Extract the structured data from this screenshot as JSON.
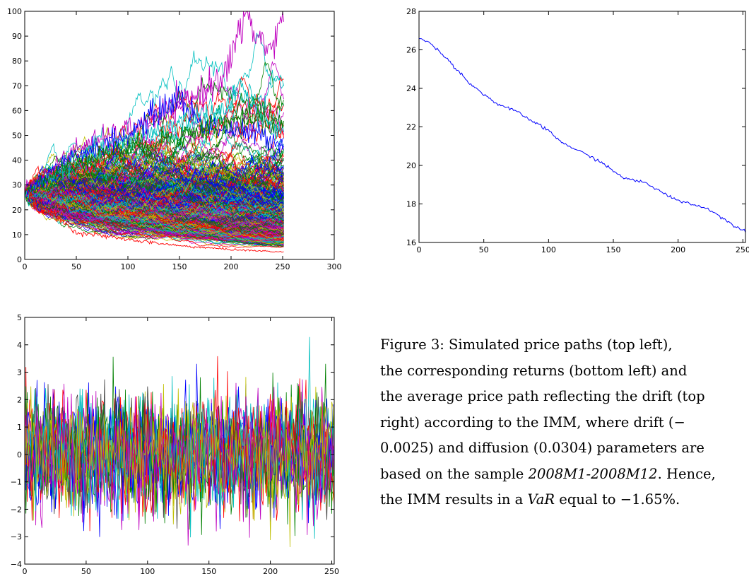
{
  "colors": {
    "palette": [
      "#0000ff",
      "#008000",
      "#ff0000",
      "#00bfbf",
      "#bf00bf",
      "#bfbf00",
      "#404040"
    ],
    "average_line": "#0000ff",
    "axis": "#000000"
  },
  "chart_data": [
    {
      "id": "simulated-price-paths",
      "type": "line",
      "title": "",
      "xlabel": "",
      "ylabel": "",
      "xlim": [
        0,
        300
      ],
      "ylim": [
        0,
        100
      ],
      "xticks": [
        0,
        50,
        100,
        150,
        200,
        250,
        300
      ],
      "yticks": [
        0,
        10,
        20,
        30,
        40,
        50,
        60,
        70,
        80,
        90,
        100
      ],
      "grid": false,
      "x_points": 252,
      "start_value": 26.6,
      "drift": -0.0025,
      "diffusion": 0.0304,
      "series_count": 600,
      "series_examples": [
        {
          "color": "#bf00bf",
          "x": [
            0,
            50,
            100,
            150,
            180,
            200,
            215,
            220,
            230,
            240,
            250
          ],
          "y": [
            26.6,
            45,
            52,
            62,
            70,
            80,
            100,
            95,
            87,
            85,
            96
          ]
        },
        {
          "color": "#00bfbf",
          "x": [
            0,
            50,
            100,
            150,
            180,
            200,
            210,
            220,
            230,
            250
          ],
          "y": [
            26.6,
            40,
            48,
            55,
            58,
            62,
            72,
            60,
            57,
            50
          ]
        },
        {
          "color": "#0000ff",
          "x": [
            0,
            50,
            100,
            130,
            150,
            170,
            200,
            230,
            250
          ],
          "y": [
            26.6,
            42,
            50,
            60,
            65,
            55,
            52,
            50,
            47
          ]
        },
        {
          "color": "#008000",
          "x": [
            0,
            50,
            100,
            150,
            200,
            220,
            250
          ],
          "y": [
            26.6,
            40,
            45,
            50,
            55,
            58,
            56
          ]
        },
        {
          "color": "#ff0000",
          "x": [
            0,
            50,
            100,
            150,
            200,
            250
          ],
          "y": [
            26.6,
            11,
            8,
            5.5,
            4,
            3
          ]
        }
      ]
    },
    {
      "id": "average-price-path",
      "type": "line",
      "title": "",
      "xlabel": "",
      "ylabel": "",
      "xlim": [
        0,
        252
      ],
      "ylim": [
        16,
        28
      ],
      "xticks": [
        0,
        50,
        100,
        150,
        200,
        250
      ],
      "yticks": [
        16,
        18,
        20,
        22,
        24,
        26,
        28
      ],
      "grid": false,
      "series": [
        {
          "color": "#0000ff",
          "x": [
            0,
            10,
            25,
            40,
            50,
            60,
            75,
            90,
            100,
            110,
            125,
            140,
            150,
            160,
            175,
            190,
            200,
            210,
            225,
            240,
            252
          ],
          "y": [
            26.6,
            26.3,
            25.3,
            24.2,
            23.7,
            23.2,
            22.8,
            22.2,
            21.8,
            21.2,
            20.7,
            20.2,
            19.7,
            19.3,
            19.1,
            18.5,
            18.2,
            18.0,
            17.7,
            17.0,
            16.6
          ]
        }
      ]
    },
    {
      "id": "simulated-returns",
      "type": "line",
      "title": "",
      "xlabel": "",
      "ylabel": "",
      "xlim": [
        0,
        252
      ],
      "ylim": [
        -4,
        5
      ],
      "xticks": [
        0,
        50,
        100,
        150,
        200,
        250
      ],
      "yticks": [
        -4,
        -3,
        -2,
        -1,
        0,
        1,
        2,
        3,
        4,
        5
      ],
      "grid": false,
      "series_count": 20,
      "value_range": [
        -4,
        4.3
      ],
      "mean": 0,
      "std": 1
    }
  ],
  "caption": {
    "lines": [
      [
        {
          "t": "Figure 3:  Simulated price paths (top left),",
          "i": false
        }
      ],
      [
        {
          "t": "the corresponding returns (bottom left) and",
          "i": false
        }
      ],
      [
        {
          "t": "the average price path reflecting the drift (top",
          "i": false
        }
      ],
      [
        {
          "t": "right) according to the IMM, where drift (",
          "i": false
        },
        {
          "t": "−",
          "i": false
        }
      ],
      [
        {
          "t": "0.0025) and diffusion (0.0304) parameters are",
          "i": false
        }
      ],
      [
        {
          "t": "based on the sample ",
          "i": false
        },
        {
          "t": "2008M1-2008M12",
          "i": true
        },
        {
          "t": ". Hence,",
          "i": false
        }
      ],
      [
        {
          "t": "the IMM results in a ",
          "i": false
        },
        {
          "t": "VaR",
          "i": true
        },
        {
          "t": " equal to −1.65%.",
          "i": false
        }
      ]
    ]
  }
}
